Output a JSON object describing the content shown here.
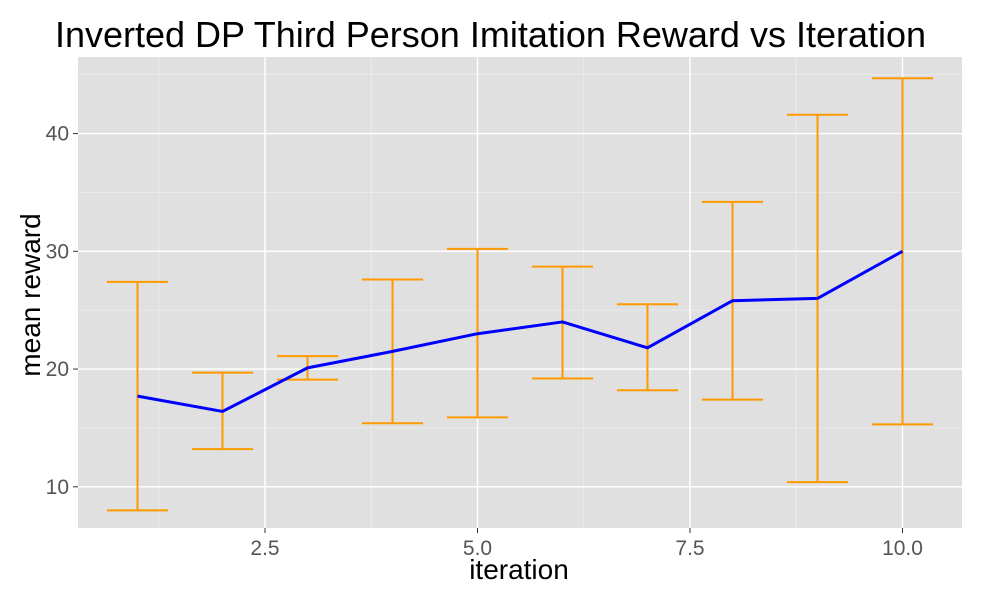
{
  "chart_data": {
    "type": "line",
    "title": "Inverted DP Third Person Imitation Reward vs Iteration",
    "xlabel": "iteration",
    "ylabel": "mean reward",
    "xlim": [
      0.3,
      10.7
    ],
    "ylim": [
      6.5,
      46.5
    ],
    "x_ticks": [
      2.5,
      5.0,
      7.5,
      10.0
    ],
    "x_tick_labels": [
      "2.5",
      "5.0",
      "7.5",
      "10.0"
    ],
    "y_ticks": [
      10,
      20,
      30,
      40
    ],
    "y_tick_labels": [
      "10",
      "20",
      "30",
      "40"
    ],
    "grid": true,
    "x": [
      1,
      2,
      3,
      4,
      5,
      6,
      7,
      8,
      9,
      10
    ],
    "series": [
      {
        "values": [
          17.7,
          16.4,
          20.1,
          21.5,
          23.0,
          24.0,
          21.8,
          25.8,
          26.0,
          30.0
        ],
        "color": "#0000ff"
      }
    ],
    "error_bars": {
      "lower": [
        8.0,
        13.2,
        19.1,
        15.4,
        15.9,
        19.2,
        18.2,
        17.4,
        10.4,
        15.3
      ],
      "upper": [
        27.4,
        19.7,
        21.1,
        27.6,
        30.2,
        28.7,
        25.5,
        34.2,
        41.6,
        44.7
      ],
      "color": "#ff9900"
    },
    "panel_background": "#e0e0e0",
    "grid_color": "#ffffff"
  }
}
